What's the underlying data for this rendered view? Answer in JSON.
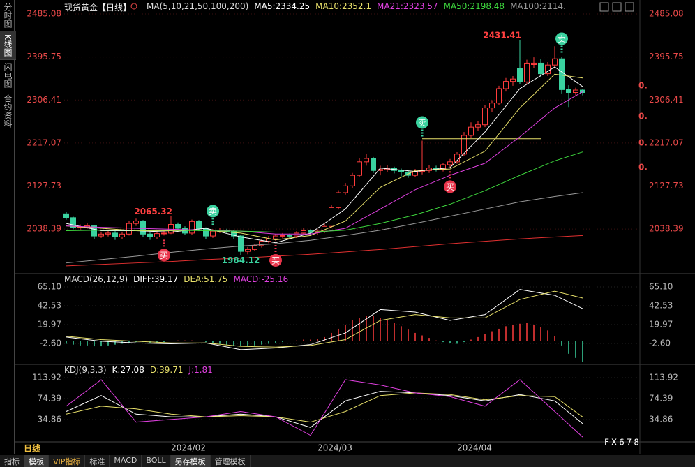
{
  "sidebar": [
    "分时图",
    "K线图",
    "闪电图",
    "合约资料"
  ],
  "header": {
    "title": "现货黄金【日线】",
    "ma_group": "MA(5,10,21,50,100,200)",
    "sep": ":"
  },
  "timeframe": "日线",
  "x_labels": [
    "2024/02",
    "2024/03",
    "2024/04"
  ],
  "toolbar": [
    "指标",
    "模板",
    "VIP指标",
    "标准",
    "MACD",
    "BOLL",
    "另存模板",
    "管理模板"
  ],
  "watermark": "FX678",
  "right_marks": [
    "0.",
    "0.",
    "0.",
    "0."
  ],
  "chart_data": [
    {
      "type": "candlestick",
      "up_color": "#ff3c3c",
      "down_color": "#3ad29f",
      "grid": true,
      "ylim": [
        1948.7,
        2496.7
      ],
      "yticks": [
        2485.08,
        2395.75,
        2306.41,
        2217.07,
        2127.73,
        2038.39
      ],
      "ohlc": [
        [
          2070,
          2074,
          2058,
          2062
        ],
        [
          2062,
          2064,
          2038,
          2042
        ],
        [
          2042,
          2048,
          2036,
          2043
        ],
        [
          2043,
          2051,
          2039,
          2045
        ],
        [
          2045,
          2047,
          2018,
          2024
        ],
        [
          2024,
          2033,
          2020,
          2028
        ],
        [
          2028,
          2036,
          2023,
          2030
        ],
        [
          2030,
          2034,
          2016,
          2022
        ],
        [
          2022,
          2033,
          2018,
          2028
        ],
        [
          2028,
          2055,
          2025,
          2050
        ],
        [
          2050,
          2060,
          2045,
          2055
        ],
        [
          2055,
          2057,
          2022,
          2028
        ],
        [
          2028,
          2032,
          2016,
          2022
        ],
        [
          2022,
          2034,
          2018,
          2029
        ],
        [
          2029,
          2036,
          2025,
          2030
        ],
        [
          2030,
          2065.32,
          2028,
          2048
        ],
        [
          2048,
          2052,
          2035,
          2040
        ],
        [
          2040,
          2044,
          2026,
          2030
        ],
        [
          2030,
          2058,
          2027,
          2054
        ],
        [
          2054,
          2057,
          2034,
          2039
        ],
        [
          2039,
          2042,
          2018,
          2024
        ],
        [
          2024,
          2038,
          2020,
          2034
        ],
        [
          2034,
          2040,
          2030,
          2035
        ],
        [
          2035,
          2039,
          2030,
          2034
        ],
        [
          2034,
          2036,
          2018,
          2024
        ],
        [
          2024,
          2027,
          1984.12,
          1992
        ],
        [
          1992,
          2001,
          1986,
          1996
        ],
        [
          1996,
          2008,
          1993,
          2004
        ],
        [
          2004,
          2018,
          2000,
          2013
        ],
        [
          2013,
          2024,
          2009,
          2018
        ],
        [
          2018,
          2028,
          2014,
          2024
        ],
        [
          2024,
          2030,
          2019,
          2025
        ],
        [
          2025,
          2029,
          2018,
          2024
        ],
        [
          2024,
          2034,
          2020,
          2030
        ],
        [
          2030,
          2040,
          2026,
          2035
        ],
        [
          2035,
          2038,
          2026,
          2031
        ],
        [
          2031,
          2038,
          2027,
          2034
        ],
        [
          2034,
          2050,
          2030,
          2044
        ],
        [
          2044,
          2088,
          2040,
          2083
        ],
        [
          2083,
          2119,
          2079,
          2114
        ],
        [
          2114,
          2134,
          2110,
          2128
        ],
        [
          2128,
          2155,
          2124,
          2150
        ],
        [
          2150,
          2185,
          2146,
          2178
        ],
        [
          2178,
          2195,
          2170,
          2185
        ],
        [
          2185,
          2188,
          2155,
          2160
        ],
        [
          2160,
          2170,
          2150,
          2162
        ],
        [
          2162,
          2172,
          2156,
          2165
        ],
        [
          2165,
          2168,
          2154,
          2160
        ],
        [
          2160,
          2164,
          2148,
          2157
        ],
        [
          2157,
          2160,
          2145,
          2150
        ],
        [
          2150,
          2163,
          2146,
          2158
        ],
        [
          2158,
          2222,
          2152,
          2160
        ],
        [
          2160,
          2172,
          2155,
          2165
        ],
        [
          2165,
          2170,
          2158,
          2163
        ],
        [
          2163,
          2176,
          2158,
          2172
        ],
        [
          2172,
          2184,
          2167,
          2178
        ],
        [
          2178,
          2198,
          2174,
          2194
        ],
        [
          2194,
          2240,
          2190,
          2233
        ],
        [
          2233,
          2260,
          2228,
          2250
        ],
        [
          2250,
          2262,
          2242,
          2255
        ],
        [
          2255,
          2296,
          2250,
          2290
        ],
        [
          2290,
          2306,
          2282,
          2300
        ],
        [
          2300,
          2336,
          2296,
          2330
        ],
        [
          2330,
          2352,
          2324,
          2345
        ],
        [
          2345,
          2356,
          2336,
          2350
        ],
        [
          2372,
          2431.41,
          2340,
          2344
        ],
        [
          2344,
          2390,
          2340,
          2383
        ],
        [
          2380,
          2395,
          2372,
          2383
        ],
        [
          2383,
          2392,
          2354,
          2361
        ],
        [
          2361,
          2385,
          2356,
          2379
        ],
        [
          2379,
          2418,
          2373,
          2392
        ],
        [
          2392,
          2396,
          2320,
          2328
        ],
        [
          2328,
          2337,
          2292,
          2322
        ],
        [
          2322,
          2332,
          2315,
          2327
        ],
        [
          2327,
          2330,
          2316,
          2322
        ]
      ],
      "labeled_highs": [
        15,
        65
      ],
      "labeled_lows": [
        25
      ],
      "signals": [
        {
          "text": "买",
          "index": 14,
          "side": "buy"
        },
        {
          "text": "卖",
          "index": 21,
          "side": "sell"
        },
        {
          "text": "买",
          "index": 30,
          "side": "buy"
        },
        {
          "text": "卖",
          "index": 51,
          "side": "sell"
        },
        {
          "text": "买",
          "index": 55,
          "side": "buy"
        },
        {
          "text": "卖",
          "index": 71,
          "side": "sell"
        }
      ],
      "trend_line": {
        "value": 2226,
        "from": 51,
        "to": 68,
        "color": "#e8e06a"
      },
      "x": [
        0,
        5,
        10,
        15,
        20,
        25,
        30,
        35,
        40,
        45,
        50,
        55,
        60,
        65,
        70,
        74
      ],
      "series": [
        {
          "name": "MA5",
          "color": "#ffffff",
          "values": [
            2050,
            2035,
            2035,
            2032,
            2040,
            2022,
            2010,
            2030,
            2080,
            2165,
            2158,
            2166,
            2240,
            2330,
            2375,
            2334.25
          ]
        },
        {
          "name": "MA10",
          "color": "#e8e06a",
          "values": [
            2045,
            2040,
            2035,
            2035,
            2036,
            2030,
            2016,
            2025,
            2055,
            2125,
            2160,
            2163,
            2200,
            2290,
            2360,
            2352.1
          ]
        },
        {
          "name": "MA21",
          "color": "#e040e0",
          "values": [
            2045,
            2042,
            2040,
            2038,
            2036,
            2034,
            2028,
            2028,
            2040,
            2080,
            2120,
            2150,
            2175,
            2230,
            2290,
            2323.57
          ]
        },
        {
          "name": "MA50",
          "color": "#3ed83e",
          "values": [
            2035,
            2036,
            2036,
            2036,
            2035,
            2034,
            2032,
            2032,
            2036,
            2050,
            2068,
            2090,
            2118,
            2150,
            2180,
            2198.48
          ]
        },
        {
          "name": "MA100",
          "color": "#9a9a9a",
          "legend_label": "2114.",
          "values": [
            1968,
            1975,
            1982,
            1990,
            1997,
            2003,
            2008,
            2015,
            2025,
            2036,
            2050,
            2065,
            2080,
            2095,
            2106,
            2114
          ]
        },
        {
          "color": "#e03030",
          "values": [
            1962,
            1965,
            1968,
            1971,
            1975,
            1978,
            1982,
            1986,
            1991,
            1996,
            2002,
            2008,
            2013,
            2018,
            2022,
            2025
          ]
        }
      ]
    },
    {
      "type": "macd",
      "title": "MACD(26,12,9)",
      "ylim": [
        -26.0,
        75.97
      ],
      "yticks": [
        {
          "value": 65.1,
          "label": "65.10"
        },
        42.53,
        19.97,
        {
          "value": -2.6,
          "label": "-2.60"
        }
      ],
      "x": [
        0,
        5,
        10,
        15,
        20,
        25,
        30,
        35,
        40,
        45,
        50,
        55,
        60,
        65,
        70,
        74
      ],
      "series": [
        {
          "name": "DIFF",
          "color": "#ffffff",
          "values": [
            5,
            0,
            -2,
            -3,
            -2,
            -10,
            -8,
            -4,
            10,
            38,
            35,
            25,
            32,
            62,
            55,
            39.17
          ]
        },
        {
          "name": "DEA",
          "color": "#e8e06a",
          "values": [
            6,
            2,
            0,
            -2,
            -2,
            -6,
            -7,
            -5,
            2,
            25,
            32,
            28,
            28,
            50,
            60,
            51.75
          ]
        }
      ],
      "histogram": {
        "name": "MACD",
        "color": "#e040e0",
        "up_color": "#ff3c3c",
        "down_color": "#3ad29f",
        "values": [
          -3,
          -4,
          -5,
          -5,
          -6,
          -6,
          -5,
          -4,
          -3,
          -2,
          -1,
          -1,
          -2,
          -2,
          -1,
          0,
          1,
          1,
          1,
          0,
          -1,
          -2,
          -3,
          -4,
          -5,
          -6,
          -6,
          -5,
          -4,
          -3,
          -2,
          -1,
          0,
          1,
          2,
          2,
          3,
          5,
          10,
          15,
          20,
          25,
          28,
          30,
          30,
          28,
          25,
          22,
          18,
          14,
          10,
          7,
          4,
          1,
          -1,
          -2,
          -3,
          -1,
          2,
          5,
          9,
          12,
          15,
          18,
          20,
          21,
          22,
          20,
          17,
          13,
          6,
          -5,
          -15,
          -20,
          -25.16
        ]
      }
    },
    {
      "type": "kdj",
      "title": "KDJ(9,3,3)",
      "ylim": [
        -6,
        131
      ],
      "yticks": [
        113.92,
        74.39,
        34.86
      ],
      "x": [
        0,
        5,
        10,
        15,
        20,
        25,
        30,
        35,
        40,
        45,
        50,
        55,
        60,
        65,
        70,
        74
      ],
      "series": [
        {
          "name": "K",
          "color": "#ffffff",
          "values": [
            50,
            80,
            45,
            40,
            40,
            45,
            40,
            20,
            70,
            88,
            85,
            80,
            70,
            82,
            70,
            27.08
          ]
        },
        {
          "name": "D",
          "color": "#e8e06a",
          "values": [
            45,
            60,
            55,
            45,
            40,
            42,
            40,
            30,
            50,
            80,
            85,
            82,
            72,
            80,
            78,
            39.71
          ]
        },
        {
          "name": "J",
          "color": "#e040e0",
          "values": [
            60,
            110,
            30,
            35,
            40,
            50,
            40,
            5,
            110,
            100,
            85,
            78,
            60,
            110,
            50,
            1.81
          ]
        }
      ]
    }
  ]
}
